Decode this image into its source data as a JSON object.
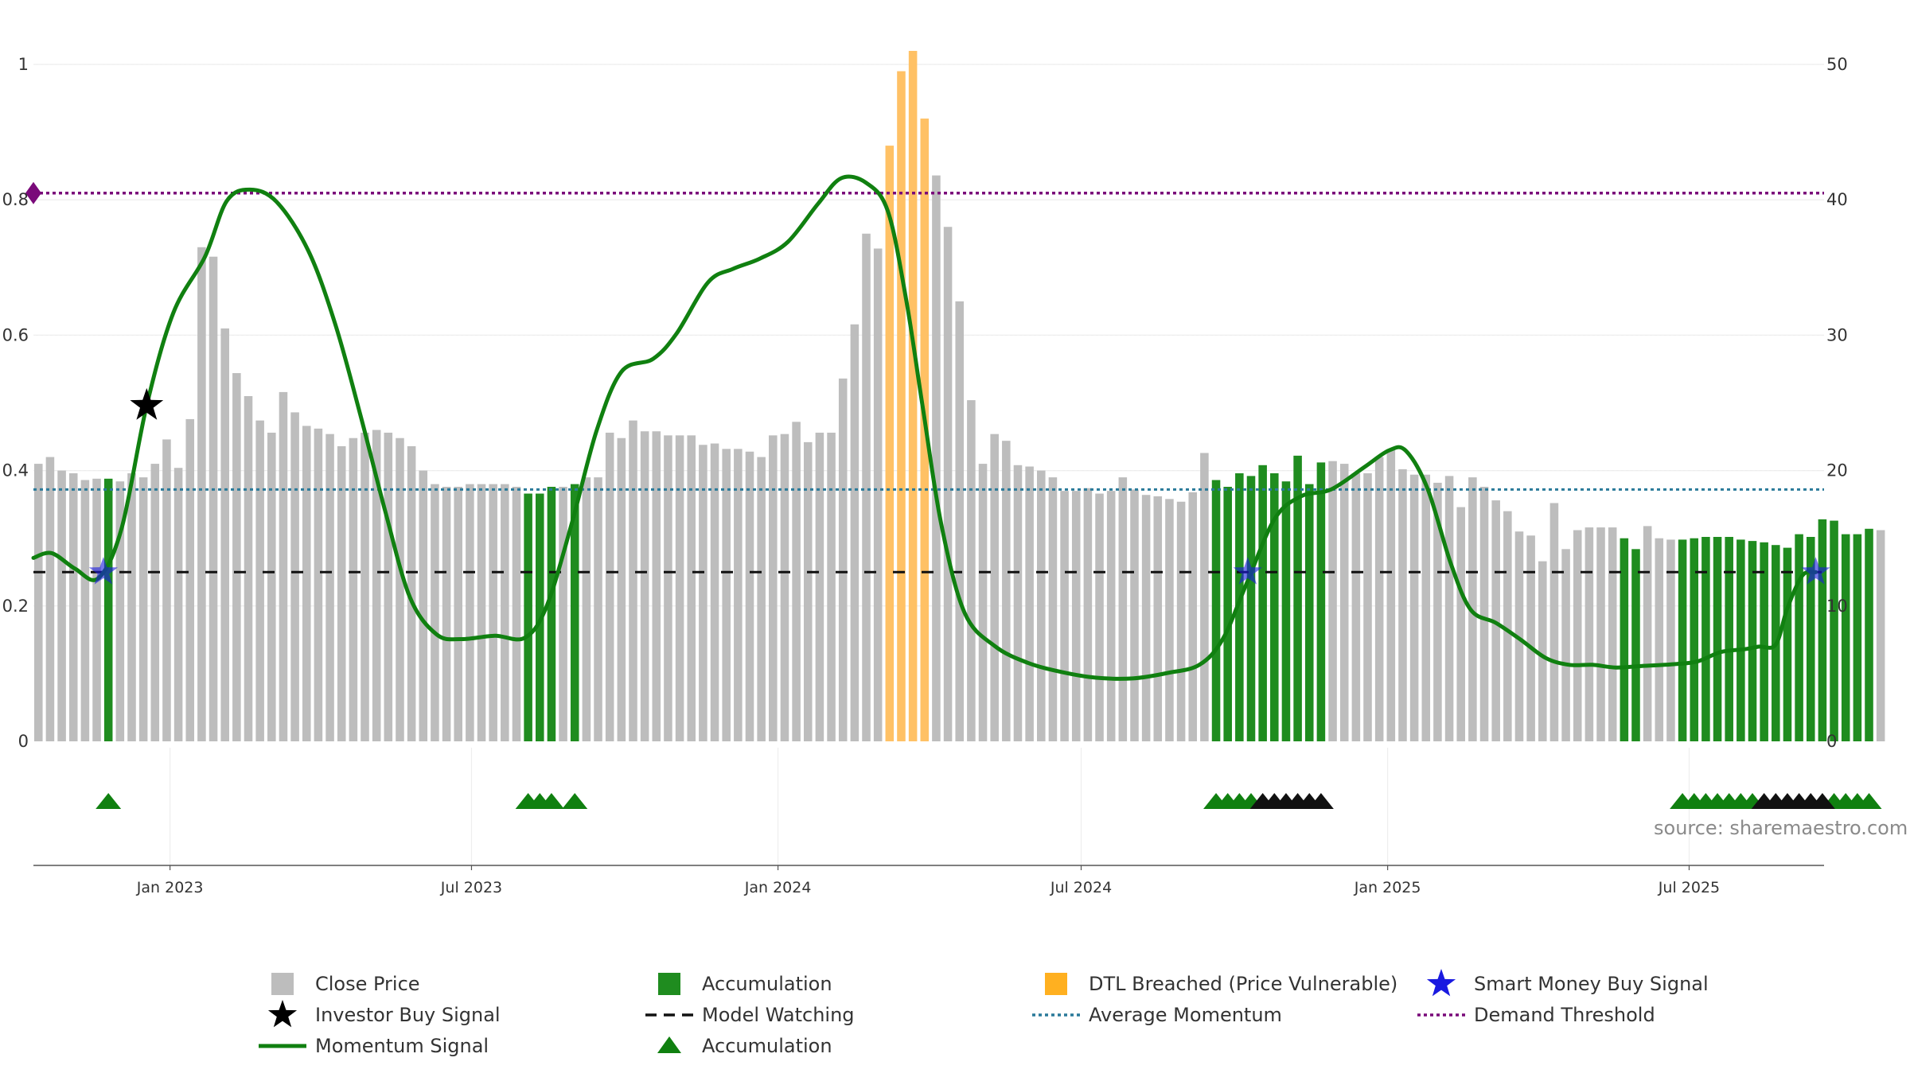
{
  "chart_data": {
    "type": "bar",
    "source_text": "source: sharemaestro.com",
    "left_axis": {
      "ylim": [
        0,
        1
      ],
      "ticks": [
        0,
        0.2,
        0.4,
        0.6,
        0.8,
        1
      ],
      "tick_labels": [
        "0",
        "0.2",
        "0.4",
        "0.6",
        "0.8",
        "1"
      ]
    },
    "right_axis": {
      "ylim": [
        0,
        50
      ],
      "ticks": [
        0,
        10,
        20,
        30,
        40,
        50
      ],
      "tick_labels": [
        "0",
        "10",
        "20",
        "30",
        "40",
        "50"
      ]
    },
    "x_axis": {
      "start": "2022-10-11",
      "end": "2025-09-20",
      "ticks": [
        {
          "date": "2023-01-01",
          "label": "Jan 2023"
        },
        {
          "date": "2023-07-01",
          "label": "Jul 2023"
        },
        {
          "date": "2024-01-01",
          "label": "Jan 2024"
        },
        {
          "date": "2024-07-01",
          "label": "Jul 2024"
        },
        {
          "date": "2025-01-01",
          "label": "Jan 2025"
        },
        {
          "date": "2025-07-01",
          "label": "Jul 2025"
        }
      ]
    },
    "close_price_weekly": {
      "start": "2022-10-14",
      "step_days": 7,
      "values": [
        20.5,
        21.0,
        20.0,
        19.8,
        19.3,
        19.4,
        19.4,
        19.2,
        19.8,
        19.5,
        20.5,
        22.3,
        20.2,
        23.8,
        36.5,
        35.8,
        30.5,
        27.2,
        25.5,
        23.7,
        22.8,
        25.8,
        24.3,
        23.3,
        23.1,
        22.7,
        21.8,
        22.4,
        22.8,
        23.0,
        22.8,
        22.4,
        21.8,
        20.0,
        19.0,
        18.8,
        18.8,
        19.0,
        19.0,
        19.0,
        19.0,
        18.8,
        18.3,
        18.3,
        18.8,
        18.8,
        19.0,
        19.5,
        19.5,
        22.8,
        22.4,
        23.7,
        22.9,
        22.9,
        22.6,
        22.6,
        22.6,
        21.9,
        22.0,
        21.6,
        21.6,
        21.4,
        21.0,
        22.6,
        22.7,
        23.6,
        22.1,
        22.8,
        22.8,
        26.8,
        30.8,
        37.5,
        36.4,
        44.0,
        49.5,
        51.0,
        46.0,
        41.8,
        38.0,
        32.5,
        25.2,
        20.5,
        22.7,
        22.2,
        20.4,
        20.3,
        20.0,
        19.5,
        18.5,
        18.5,
        18.7,
        18.3,
        18.5,
        19.5,
        18.6,
        18.2,
        18.1,
        17.9,
        17.7,
        18.4,
        21.3,
        19.3,
        18.8,
        19.8,
        19.6,
        20.4,
        19.8,
        19.2,
        21.1,
        19.0,
        20.6,
        20.7,
        20.5,
        19.8,
        19.8,
        21.0,
        21.6,
        20.1,
        19.7,
        19.7,
        19.1,
        19.6,
        17.3,
        19.5,
        18.8,
        17.8,
        17.0,
        15.5,
        15.2,
        13.3,
        17.6,
        14.2,
        15.6,
        15.8,
        15.8,
        15.8,
        15.0,
        14.2,
        15.9,
        15.0,
        14.9,
        14.9,
        15.0,
        15.1,
        15.1,
        15.1,
        14.9,
        14.8,
        14.7,
        14.5,
        14.3,
        15.3,
        15.1,
        16.4,
        16.3,
        15.3,
        15.3,
        15.7,
        15.6
      ]
    },
    "accumulation_week_indices": [
      6,
      42,
      43,
      44,
      46,
      101,
      102,
      103,
      104,
      105,
      106,
      107,
      108,
      109,
      110,
      136,
      137,
      141,
      142,
      143,
      144,
      145,
      146,
      147,
      148,
      149,
      150,
      151,
      152,
      153,
      154,
      155,
      156,
      157
    ],
    "dtl_breached_week_indices": [
      73,
      74,
      75,
      76
    ],
    "momentum_signal": {
      "points": [
        [
          "2022-10-11",
          0.271
        ],
        [
          "2022-10-22",
          0.278
        ],
        [
          "2022-11-05",
          0.255
        ],
        [
          "2022-11-19",
          0.241
        ],
        [
          "2022-12-03",
          0.315
        ],
        [
          "2022-12-18",
          0.496
        ],
        [
          "2023-01-03",
          0.633
        ],
        [
          "2023-01-22",
          0.716
        ],
        [
          "2023-02-04",
          0.798
        ],
        [
          "2023-02-18",
          0.815
        ],
        [
          "2023-03-06",
          0.797
        ],
        [
          "2023-03-25",
          0.725
        ],
        [
          "2023-04-10",
          0.618
        ],
        [
          "2023-04-25",
          0.485
        ],
        [
          "2023-05-10",
          0.342
        ],
        [
          "2023-05-25",
          0.213
        ],
        [
          "2023-06-10",
          0.158
        ],
        [
          "2023-06-25",
          0.151
        ],
        [
          "2023-07-15",
          0.156
        ],
        [
          "2023-08-02",
          0.153
        ],
        [
          "2023-08-15",
          0.199
        ],
        [
          "2023-08-30",
          0.32
        ],
        [
          "2023-09-14",
          0.458
        ],
        [
          "2023-09-29",
          0.546
        ],
        [
          "2023-10-18",
          0.565
        ],
        [
          "2023-11-01",
          0.602
        ],
        [
          "2023-11-20",
          0.678
        ],
        [
          "2023-12-05",
          0.698
        ],
        [
          "2023-12-21",
          0.713
        ],
        [
          "2024-01-07",
          0.738
        ],
        [
          "2024-01-25",
          0.794
        ],
        [
          "2024-02-08",
          0.832
        ],
        [
          "2024-02-23",
          0.825
        ],
        [
          "2024-03-07",
          0.783
        ],
        [
          "2024-03-18",
          0.652
        ],
        [
          "2024-03-28",
          0.492
        ],
        [
          "2024-04-08",
          0.321
        ],
        [
          "2024-04-22",
          0.19
        ],
        [
          "2024-05-10",
          0.141
        ],
        [
          "2024-05-30",
          0.116
        ],
        [
          "2024-06-20",
          0.102
        ],
        [
          "2024-07-10",
          0.094
        ],
        [
          "2024-08-01",
          0.093
        ],
        [
          "2024-08-22",
          0.101
        ],
        [
          "2024-09-10",
          0.113
        ],
        [
          "2024-09-24",
          0.151
        ],
        [
          "2024-10-08",
          0.231
        ],
        [
          "2024-10-25",
          0.328
        ],
        [
          "2024-11-10",
          0.362
        ],
        [
          "2024-11-28",
          0.372
        ],
        [
          "2024-12-18",
          0.405
        ],
        [
          "2025-01-02",
          0.43
        ],
        [
          "2025-01-12",
          0.429
        ],
        [
          "2025-01-25",
          0.373
        ],
        [
          "2025-02-08",
          0.262
        ],
        [
          "2025-02-20",
          0.194
        ],
        [
          "2025-03-07",
          0.175
        ],
        [
          "2025-03-22",
          0.15
        ],
        [
          "2025-04-06",
          0.123
        ],
        [
          "2025-04-20",
          0.113
        ],
        [
          "2025-05-04",
          0.113
        ],
        [
          "2025-05-18",
          0.109
        ],
        [
          "2025-06-01",
          0.111
        ],
        [
          "2025-06-22",
          0.114
        ],
        [
          "2025-07-06",
          0.118
        ],
        [
          "2025-07-20",
          0.132
        ],
        [
          "2025-08-03",
          0.136
        ],
        [
          "2025-08-12",
          0.14
        ],
        [
          "2025-08-22",
          0.143
        ],
        [
          "2025-08-29",
          0.197
        ],
        [
          "2025-09-07",
          0.245
        ],
        [
          "2025-09-15",
          0.25
        ]
      ]
    },
    "average_momentum": 0.372,
    "demand_threshold": 0.81,
    "model_watching": 0.25,
    "investor_buy_signal": [
      {
        "date": "2022-12-18",
        "y": 0.496
      }
    ],
    "smart_money_buy_signal": [
      {
        "date": "2022-11-22",
        "y": 0.25
      },
      {
        "date": "2024-10-09",
        "y": 0.25
      },
      {
        "date": "2025-09-15",
        "y": 0.25
      }
    ],
    "accumulation_markers": {
      "green_week_indices": [
        6,
        42,
        43,
        44,
        46,
        101,
        102,
        103,
        104,
        141,
        142,
        143,
        144,
        145,
        146,
        147,
        154,
        155,
        156,
        157
      ],
      "black_week_indices": [
        105,
        106,
        107,
        108,
        109,
        110,
        148,
        149,
        150,
        151,
        152,
        153
      ]
    },
    "colors": {
      "close_price": "#bdbdbd",
      "accumulation": "#1f8c1f",
      "dtl_breached": "#ffc165",
      "momentum_signal": "#108010",
      "model_watching": "#111111",
      "average_momentum": "#2a7a9a",
      "demand_threshold": "#7a0a7a",
      "investor_buy_signal": "#000000",
      "smart_money_buy_signal": "#1a1ae0",
      "accumulation_marker": "#108010",
      "accumulation_marker_alt": "#111111"
    },
    "legend": [
      {
        "label": "Close Price",
        "kind": "square",
        "color": "#bdbdbd"
      },
      {
        "label": "Accumulation",
        "kind": "square",
        "color": "#1f8c1f"
      },
      {
        "label": "DTL Breached (Price Vulnerable)",
        "kind": "square",
        "color": "#ffb020"
      },
      {
        "label": "Smart Money Buy Signal",
        "kind": "star",
        "color": "#1a1ae0"
      },
      {
        "label": "Investor Buy Signal",
        "kind": "star",
        "color": "#000000"
      },
      {
        "label": "Model Watching",
        "kind": "dash",
        "color": "#111111"
      },
      {
        "label": "Average Momentum",
        "kind": "dot",
        "color": "#2a7a9a"
      },
      {
        "label": "Demand Threshold",
        "kind": "dot",
        "color": "#7a0a7a"
      },
      {
        "label": "Momentum Signal",
        "kind": "line",
        "color": "#108010"
      },
      {
        "label": "Accumulation",
        "kind": "triangle",
        "color": "#108010"
      }
    ]
  }
}
